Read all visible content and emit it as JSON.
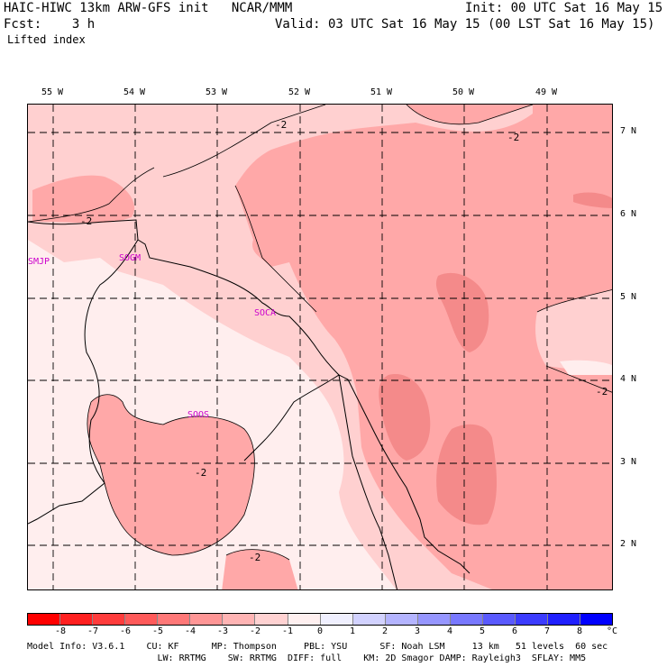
{
  "header": {
    "title": "HAIC-HIWC 13km ARW-GFS init   NCAR/MMM",
    "fcst": "Fcst:    3 h",
    "field": "Lifted index",
    "init": "Init: 00 UTC Sat 16 May 15",
    "valid": "Valid: 03 UTC Sat 16 May 15 (00 LST Sat 16 May 15)"
  },
  "map": {
    "longitudes": [
      "55 W",
      "54 W",
      "53 W",
      "52 W",
      "51 W",
      "50 W",
      "49 W"
    ],
    "latitudes": [
      "7 N",
      "6 N",
      "5 N",
      "4 N",
      "3 N",
      "2 N"
    ],
    "stations": [
      "SMJP",
      "SOGM",
      "SOCA",
      "SOOS"
    ],
    "contour_labels": [
      "-2",
      "-2",
      "-2",
      "-2",
      "-2",
      "-2"
    ],
    "colors": {
      "lightest": "#ffeeee",
      "light": "#ffd0d0",
      "medium": "#ffa8a8",
      "dark": "#f48a8a",
      "station": "#cc00cc"
    }
  },
  "legend": {
    "labels": [
      "-8",
      "-7",
      "-6",
      "-5",
      "-4",
      "-3",
      "-2",
      "-1",
      "0",
      "1",
      "2",
      "3",
      "4",
      "5",
      "6",
      "7",
      "8"
    ],
    "unit": "°C",
    "colors": [
      "#ff0000",
      "#ff2020",
      "#ff3c3c",
      "#ff5a5a",
      "#ff7878",
      "#ff9696",
      "#ffb4b4",
      "#ffd2d2",
      "#fff0f0",
      "#f0f0ff",
      "#d2d2ff",
      "#b4b4ff",
      "#9696ff",
      "#7878ff",
      "#5a5aff",
      "#3c3cff",
      "#2020ff",
      "#0000ff"
    ]
  },
  "footer": {
    "line1": "Model Info: V3.6.1    CU: KF      MP: Thompson     PBL: YSU      SF: Noah LSM     13 km   51 levels  60 sec",
    "line2": "                        LW: RRTMG    SW: RRTMG  DIFF: full    KM: 2D Smagor DAMP: Rayleigh3  SFLAY: MM5"
  }
}
